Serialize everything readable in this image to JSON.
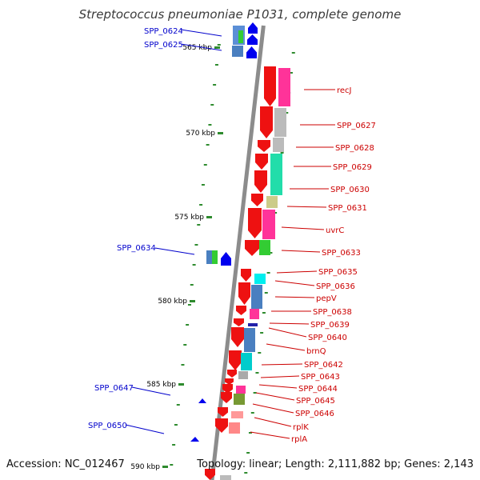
{
  "title": "Streptococcus pneumoniae P1031, complete genome",
  "footer": {
    "accession": "Accession: NC_012467",
    "topology": "Topology: linear; Length: 2,111,882 bp; Genes: 2,143"
  },
  "colors": {
    "backbone": "#8c8c8c",
    "right_label": "#cc0000",
    "left_label": "#0000cc",
    "tick": "#2e8b2e",
    "ruler_text": "#000000"
  },
  "ruler": [
    {
      "label": "565 kbp"
    },
    {
      "label": "570 kbp"
    },
    {
      "label": "575 kbp"
    },
    {
      "label": "580 kbp"
    },
    {
      "label": "585 kbp"
    },
    {
      "label": "590 kbp"
    }
  ],
  "right_labels": [
    "recJ",
    "SPP_0627",
    "SPP_0628",
    "SPP_0629",
    "SPP_0630",
    "SPP_0631",
    "uvrC",
    "SPP_0633",
    "SPP_0635",
    "SPP_0636",
    "pepV",
    "SPP_0638",
    "SPP_0639",
    "SPP_0640",
    "brnQ",
    "SPP_0642",
    "SPP_0643",
    "SPP_0644",
    "SPP_0645",
    "SPP_0646",
    "rplK",
    "rplA"
  ],
  "left_labels": [
    "SPP_0624",
    "SPP_0625",
    "SPP_0634",
    "SPP_0647",
    "SPP_0650"
  ]
}
